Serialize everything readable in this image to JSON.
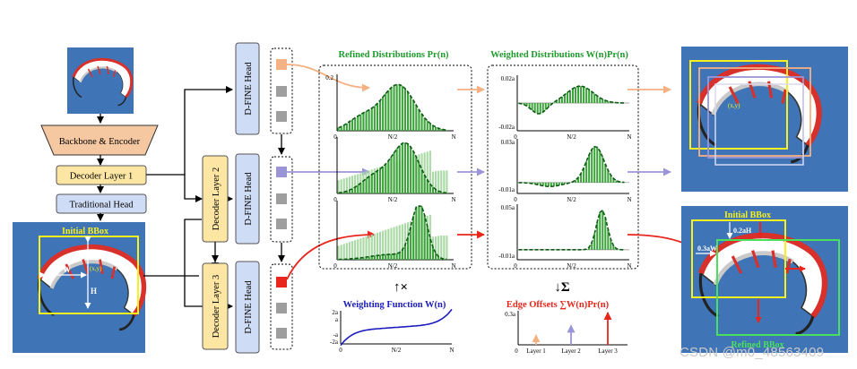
{
  "pipeline": {
    "backbone": "Backbone & Encoder",
    "decoder1": "Decoder Layer 1",
    "traditional_head": "Traditional Head",
    "initial_bbox_title": "Initial BBox",
    "decoder2": "Decoder Layer 2",
    "decoder3": "Decoder Layer 3",
    "head_label": "D-FINE Head"
  },
  "panels": {
    "refined_title": "Refined Distributions Pr(n)",
    "weighted_title": "Weighted Distributions W(n)Pr(n)",
    "weighting_title": "Weighting Function W(n)",
    "edge_title": "Edge Offsets ",
    "edge_formula": "∑W(n)Pr(n)",
    "mult_symbol": "↑×",
    "sum_symbol": "↓Σ"
  },
  "axes": {
    "zero": "0",
    "mid": "N/2",
    "end": "N",
    "pr_top": "0.2",
    "w_top": [
      "0.02a",
      "0.03a",
      "0.05a"
    ],
    "w_bottom": [
      "-0.02a",
      "-0.01a",
      "-0.01a"
    ],
    "wf_ticks": [
      "2a",
      "a",
      "-a",
      "-2a"
    ],
    "edge_top": "0.3a",
    "edge_layers": [
      "Layer 1",
      "Layer 2",
      "Layer 3"
    ]
  },
  "result": {
    "initial_bbox": "Initial BBox",
    "refined_bbox": "Refined BBox",
    "offset_h": "0.2aH",
    "offset_w": "0.3aW",
    "dim_w": "W",
    "dim_h": "H",
    "center_mark": "(x,y)"
  },
  "colors": {
    "layer1": "#f4b183",
    "layer2": "#9b95d8",
    "layer3": "#e8261c",
    "decoder_fill": "#fde5a3",
    "head_fill": "#cfdcf5",
    "green_title": "#1f9a2c",
    "weight_blue": "#1c1cbf",
    "edge_red": "#e8261c"
  },
  "watermark": "CSDN @m0_48563409"
}
